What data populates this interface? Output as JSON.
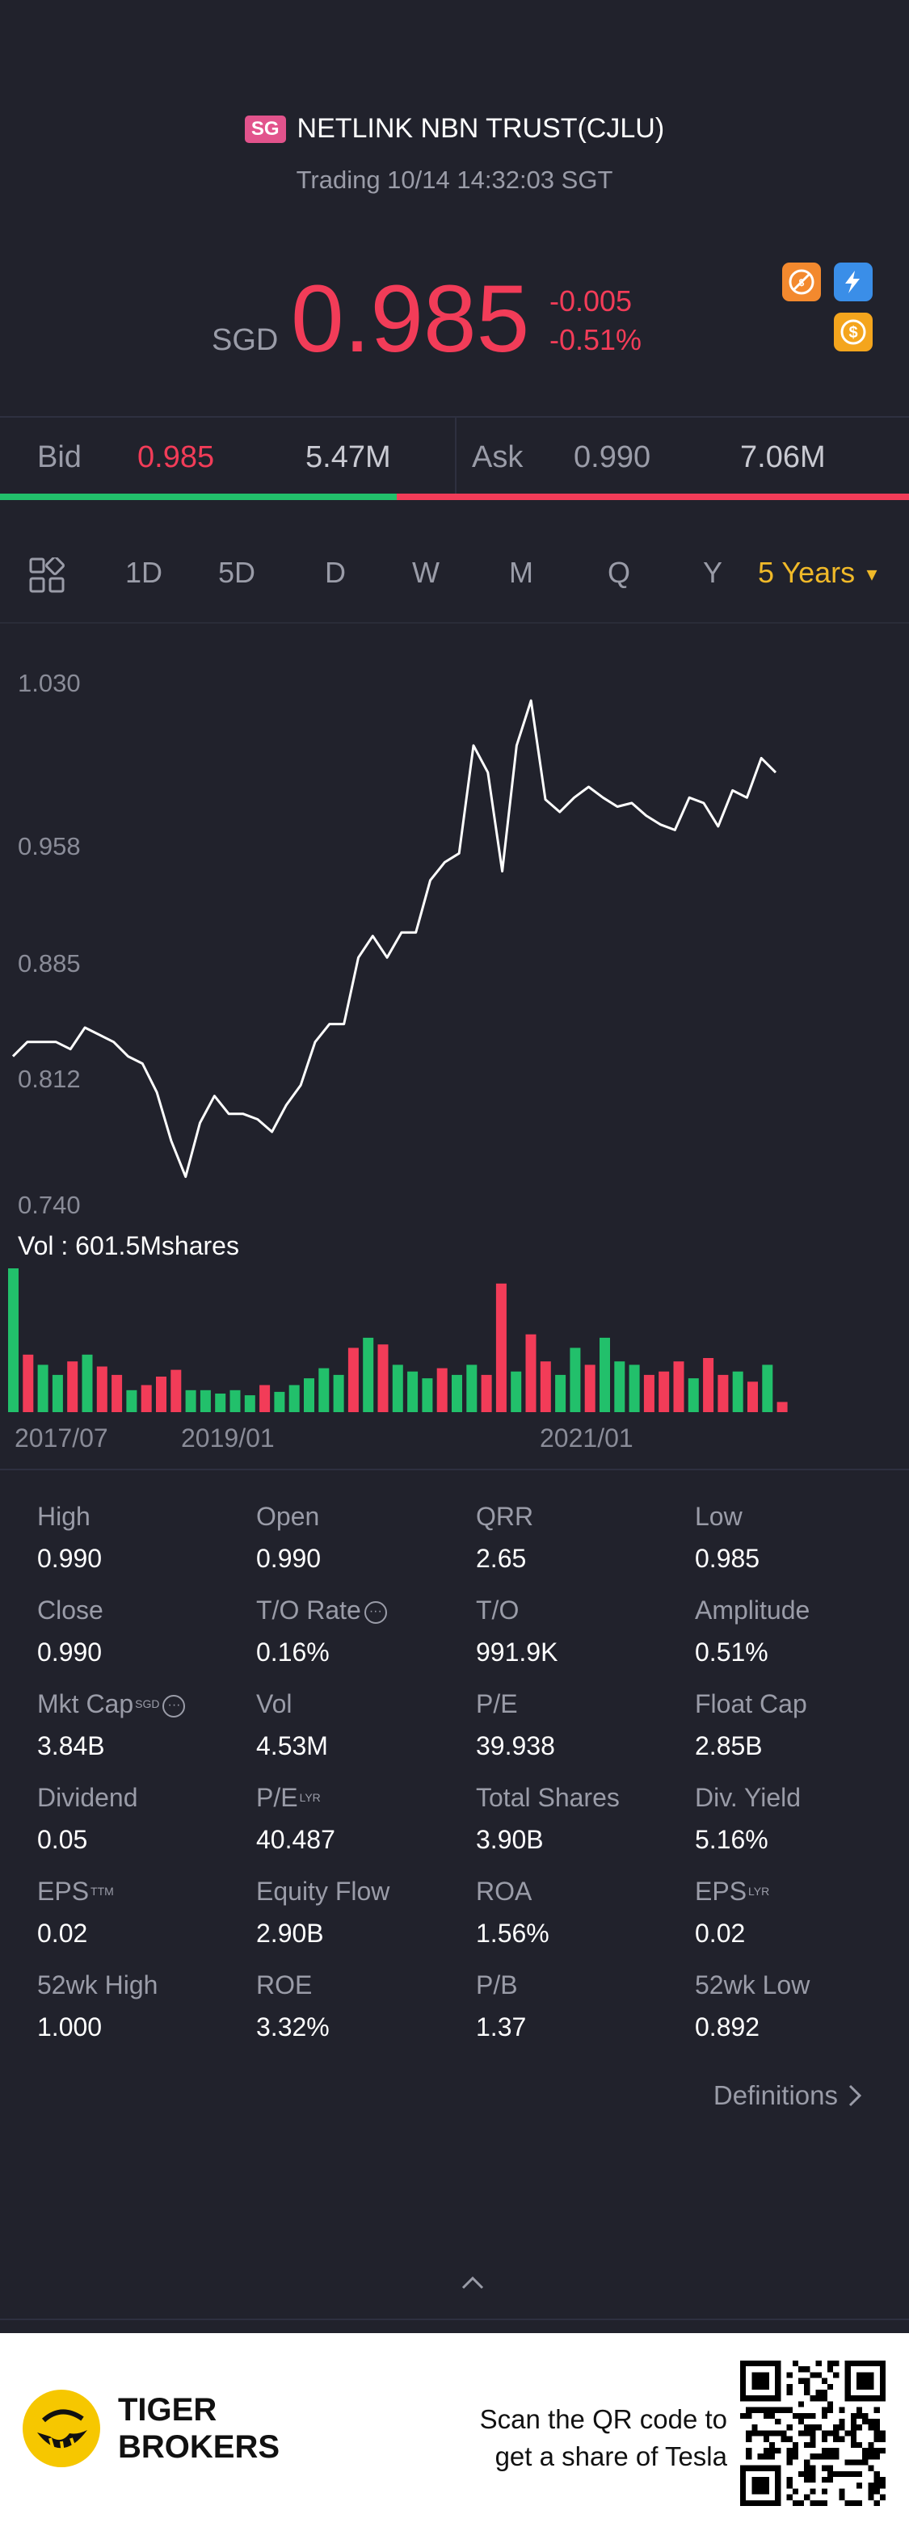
{
  "header": {
    "market_badge": "SG",
    "stock_name": "NETLINK NBN TRUST(CJLU)",
    "trading_status": "Trading 10/14 14:32:03 SGT",
    "currency": "SGD",
    "price": "0.985",
    "change": "-0.005",
    "change_pct": "-0.51%",
    "colors": {
      "down": "#f23c58",
      "up": "#22c06b",
      "accent": "#f0b929"
    }
  },
  "bid_ask": {
    "bid_label": "Bid",
    "bid_price": "0.985",
    "bid_size": "5.47M",
    "ask_label": "Ask",
    "ask_price": "0.990",
    "ask_size": "7.06M",
    "bid_ratio": 0.436
  },
  "periods": {
    "tabs": [
      "1D",
      "5D",
      "D",
      "W",
      "M",
      "Q",
      "Y"
    ],
    "active": "5 Years"
  },
  "chart_data": {
    "type": "line",
    "y_ticks": [
      "1.030",
      "0.958",
      "0.885",
      "0.812",
      "0.740"
    ],
    "ylim": [
      0.74,
      1.03
    ],
    "x_ticks": [
      "2017/07",
      "2019/01",
      "2021/01"
    ],
    "volume_label": "Vol  : 601.5Mshares",
    "price_series": [
      0.822,
      0.83,
      0.83,
      0.83,
      0.826,
      0.838,
      0.834,
      0.83,
      0.822,
      0.818,
      0.802,
      0.775,
      0.755,
      0.785,
      0.8,
      0.79,
      0.79,
      0.787,
      0.78,
      0.795,
      0.806,
      0.83,
      0.84,
      0.84,
      0.877,
      0.889,
      0.877,
      0.891,
      0.891,
      0.92,
      0.93,
      0.935,
      0.995,
      0.98,
      0.925,
      0.995,
      1.02,
      0.965,
      0.958,
      0.966,
      0.972,
      0.966,
      0.961,
      0.963,
      0.956,
      0.951,
      0.948,
      0.966,
      0.963,
      0.95,
      0.97,
      0.966,
      0.988,
      0.98
    ],
    "volume_series": [
      {
        "v": 85,
        "up": true
      },
      {
        "v": 34,
        "up": false
      },
      {
        "v": 28,
        "up": true
      },
      {
        "v": 22,
        "up": true
      },
      {
        "v": 30,
        "up": false
      },
      {
        "v": 34,
        "up": true
      },
      {
        "v": 27,
        "up": false
      },
      {
        "v": 22,
        "up": false
      },
      {
        "v": 13,
        "up": true
      },
      {
        "v": 16,
        "up": false
      },
      {
        "v": 21,
        "up": false
      },
      {
        "v": 25,
        "up": false
      },
      {
        "v": 13,
        "up": true
      },
      {
        "v": 13,
        "up": true
      },
      {
        "v": 11,
        "up": true
      },
      {
        "v": 13,
        "up": true
      },
      {
        "v": 10,
        "up": true
      },
      {
        "v": 16,
        "up": false
      },
      {
        "v": 12,
        "up": true
      },
      {
        "v": 16,
        "up": true
      },
      {
        "v": 20,
        "up": true
      },
      {
        "v": 26,
        "up": true
      },
      {
        "v": 22,
        "up": true
      },
      {
        "v": 38,
        "up": false
      },
      {
        "v": 44,
        "up": true
      },
      {
        "v": 40,
        "up": false
      },
      {
        "v": 28,
        "up": true
      },
      {
        "v": 24,
        "up": true
      },
      {
        "v": 20,
        "up": true
      },
      {
        "v": 26,
        "up": false
      },
      {
        "v": 22,
        "up": true
      },
      {
        "v": 28,
        "up": true
      },
      {
        "v": 22,
        "up": false
      },
      {
        "v": 76,
        "up": false
      },
      {
        "v": 24,
        "up": true
      },
      {
        "v": 46,
        "up": false
      },
      {
        "v": 30,
        "up": false
      },
      {
        "v": 22,
        "up": true
      },
      {
        "v": 38,
        "up": true
      },
      {
        "v": 28,
        "up": false
      },
      {
        "v": 44,
        "up": true
      },
      {
        "v": 30,
        "up": true
      },
      {
        "v": 28,
        "up": true
      },
      {
        "v": 22,
        "up": false
      },
      {
        "v": 24,
        "up": false
      },
      {
        "v": 30,
        "up": false
      },
      {
        "v": 20,
        "up": true
      },
      {
        "v": 32,
        "up": false
      },
      {
        "v": 22,
        "up": false
      },
      {
        "v": 24,
        "up": true
      },
      {
        "v": 18,
        "up": false
      },
      {
        "v": 28,
        "up": true
      },
      {
        "v": 6,
        "up": false
      }
    ]
  },
  "stats": [
    {
      "label": "High",
      "value": "0.990"
    },
    {
      "label": "Open",
      "value": "0.990"
    },
    {
      "label": "QRR",
      "value": "2.65"
    },
    {
      "label": "Low",
      "value": "0.985"
    },
    {
      "label": "Close",
      "value": "0.990"
    },
    {
      "label": "T/O Rate",
      "value": "0.16%",
      "info": true
    },
    {
      "label": "T/O",
      "value": "991.9K"
    },
    {
      "label": "Amplitude",
      "value": "0.51%"
    },
    {
      "label": "Mkt Cap",
      "value": "3.84B",
      "sup": "SGD",
      "info": true
    },
    {
      "label": "Vol",
      "value": "4.53M"
    },
    {
      "label": "P/E",
      "value": "39.938"
    },
    {
      "label": "Float Cap",
      "value": "2.85B"
    },
    {
      "label": "Dividend",
      "value": "0.05"
    },
    {
      "label": "P/E",
      "value": "40.487",
      "sup": "LYR"
    },
    {
      "label": "Total Shares",
      "value": "3.90B"
    },
    {
      "label": "Div. Yield",
      "value": "5.16%"
    },
    {
      "label": "EPS",
      "value": "0.02",
      "sup": "TTM"
    },
    {
      "label": "Equity Flow",
      "value": "2.90B"
    },
    {
      "label": "ROA",
      "value": "1.56%"
    },
    {
      "label": "EPS",
      "value": "0.02",
      "sup": "LYR"
    },
    {
      "label": "52wk High",
      "value": "1.000"
    },
    {
      "label": "ROE",
      "value": "3.32%"
    },
    {
      "label": "P/B",
      "value": "1.37"
    },
    {
      "label": "52wk Low",
      "value": "0.892"
    }
  ],
  "definitions_label": "Definitions",
  "promo": {
    "brand_line1": "TIGER",
    "brand_line2": "BROKERS",
    "text_line1": "Scan the QR code to",
    "text_line2": "get a share of Tesla"
  }
}
